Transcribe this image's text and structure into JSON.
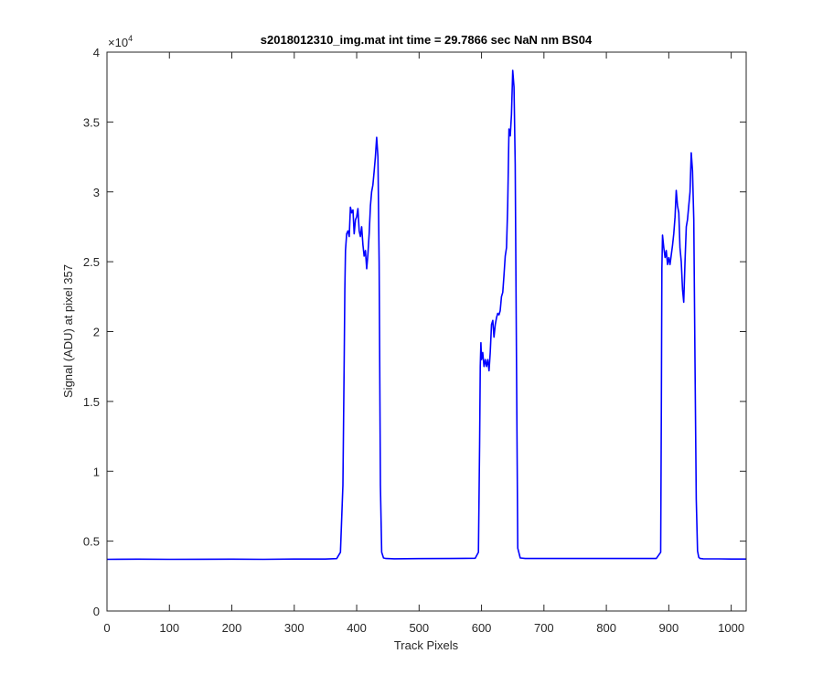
{
  "chart_data": {
    "type": "line",
    "title": "s2018012310_img.mat int time = 29.7866 sec  NaN nm BS04",
    "xlabel": "Track Pixels",
    "ylabel": "Signal (ADU) at pixel 357",
    "xlim": [
      0,
      1024
    ],
    "ylim": [
      0,
      40000
    ],
    "xticks": [
      0,
      100,
      200,
      300,
      400,
      500,
      600,
      700,
      800,
      900,
      1000
    ],
    "yticks": [
      0,
      5000,
      10000,
      15000,
      20000,
      25000,
      30000,
      35000,
      40000
    ],
    "ytick_labels": [
      "0",
      "0.5",
      "1",
      "1.5",
      "2",
      "2.5",
      "3",
      "3.5",
      "4"
    ],
    "y_exponent_base": "×10",
    "y_exponent_power": "4",
    "grid": false,
    "legend": "none",
    "series": [
      {
        "color": "#0000ff",
        "x": [
          0,
          50,
          100,
          150,
          200,
          250,
          300,
          350,
          368,
          374,
          378,
          380,
          381,
          382,
          384,
          386,
          388,
          390,
          392,
          394,
          396,
          398,
          400,
          402,
          404,
          406,
          408,
          410,
          412,
          414,
          416,
          418,
          420,
          422,
          424,
          426,
          428,
          430,
          432,
          434,
          436,
          438,
          440,
          443,
          447,
          460,
          500,
          550,
          590,
          595,
          597,
          598,
          599,
          600,
          602,
          604,
          606,
          608,
          610,
          612,
          614,
          616,
          618,
          620,
          622,
          624,
          626,
          628,
          630,
          632,
          634,
          636,
          638,
          640,
          642,
          644,
          646,
          648,
          650,
          652,
          654,
          656,
          658,
          662,
          670,
          700,
          750,
          800,
          850,
          880,
          887,
          888,
          889,
          890,
          892,
          894,
          896,
          898,
          900,
          902,
          904,
          906,
          908,
          910,
          912,
          914,
          916,
          918,
          920,
          922,
          924,
          926,
          928,
          930,
          932,
          934,
          936,
          938,
          940,
          942,
          944,
          946,
          948,
          950,
          952,
          955,
          960,
          980,
          1000,
          1024
        ],
        "y": [
          3700,
          3710,
          3700,
          3705,
          3710,
          3700,
          3720,
          3720,
          3750,
          4200,
          9000,
          18000,
          23000,
          25800,
          27000,
          27200,
          26800,
          28900,
          28500,
          28700,
          27000,
          28000,
          28200,
          28800,
          27200,
          26800,
          27500,
          26200,
          25400,
          25800,
          24500,
          25500,
          27000,
          29000,
          30000,
          30500,
          31500,
          32500,
          33900,
          32500,
          25000,
          9000,
          4200,
          3800,
          3760,
          3740,
          3750,
          3760,
          3780,
          4200,
          12000,
          17500,
          19200,
          18000,
          18500,
          17500,
          18000,
          17500,
          18000,
          17200,
          18500,
          20500,
          20800,
          19600,
          20500,
          21000,
          21300,
          21200,
          21500,
          22500,
          22800,
          24000,
          25400,
          26000,
          29000,
          34500,
          34000,
          35500,
          38700,
          37500,
          32000,
          18000,
          4500,
          3800,
          3760,
          3760,
          3760,
          3760,
          3760,
          3760,
          4200,
          14000,
          24500,
          26900,
          26000,
          25300,
          25800,
          24800,
          25300,
          24800,
          25500,
          26200,
          27000,
          28200,
          30100,
          29000,
          28500,
          26000,
          25000,
          23000,
          22100,
          25000,
          27500,
          28000,
          29000,
          30000,
          32800,
          31500,
          28000,
          18000,
          8000,
          4300,
          3850,
          3760,
          3750,
          3740,
          3730,
          3730,
          3720,
          3720
        ]
      }
    ]
  }
}
